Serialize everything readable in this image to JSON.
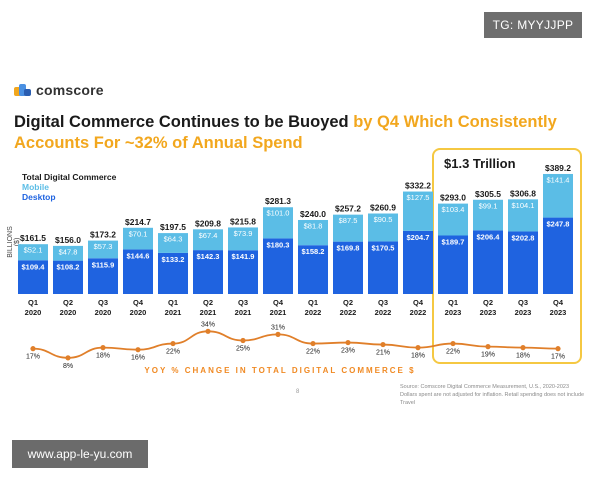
{
  "watermarks": {
    "top": "TG: MYYJJPP",
    "bottom": "www.app-le-yu.com"
  },
  "brand": {
    "name": "comscore"
  },
  "title": {
    "part1": "Digital Commerce Continues to be Buoyed ",
    "part2": "by Q4 Which Consistently Accounts For ~32% of Annual Spend"
  },
  "highlight": {
    "label": "$1.3 Trillion"
  },
  "source": {
    "line1": "Source: Comscore Digital Commerce Measurement, U.S., 2020-2023",
    "line2": "Dollars spent are not adjusted for inflation. Retail spending does not include Travel"
  },
  "page_number": "8",
  "colors": {
    "mobile": "#5bbde6",
    "desktop": "#1f63e0",
    "yoy_line": "#e07f2a",
    "accent": "#f2a71e",
    "box": "#f5c842"
  },
  "chart_data": {
    "type": "bar",
    "ylabel": "BILLIONS ($)",
    "legend": {
      "total": "Total Digital Commerce",
      "mobile": "Mobile",
      "desktop": "Desktop"
    },
    "categories": [
      [
        "Q1",
        "2020"
      ],
      [
        "Q2",
        "2020"
      ],
      [
        "Q3",
        "2020"
      ],
      [
        "Q4",
        "2020"
      ],
      [
        "Q1",
        "2021"
      ],
      [
        "Q2",
        "2021"
      ],
      [
        "Q3",
        "2021"
      ],
      [
        "Q4",
        "2021"
      ],
      [
        "Q1",
        "2022"
      ],
      [
        "Q2",
        "2022"
      ],
      [
        "Q3",
        "2022"
      ],
      [
        "Q4",
        "2022"
      ],
      [
        "Q1",
        "2023"
      ],
      [
        "Q2",
        "2023"
      ],
      [
        "Q3",
        "2023"
      ],
      [
        "Q4",
        "2023"
      ]
    ],
    "total": [
      "$161.5",
      "$156.0",
      "$173.2",
      "$214.7",
      "$197.5",
      "$209.8",
      "$215.8",
      "$281.3",
      "$240.0",
      "$257.2",
      "$260.9",
      "$332.2",
      "$293.0",
      "$305.5",
      "$306.8",
      "$389.2"
    ],
    "series": [
      {
        "name": "Desktop",
        "values": [
          109.4,
          108.2,
          115.9,
          144.6,
          133.2,
          142.3,
          141.9,
          180.3,
          158.2,
          169.8,
          170.5,
          204.7,
          189.7,
          206.4,
          202.8,
          247.8
        ]
      },
      {
        "name": "Mobile",
        "values": [
          52.1,
          47.8,
          57.3,
          70.1,
          64.3,
          67.4,
          73.9,
          101.0,
          81.8,
          87.5,
          90.5,
          127.5,
          103.4,
          99.1,
          104.1,
          141.4
        ]
      }
    ],
    "yoy": {
      "title": "YOY % CHANGE IN TOTAL DIGITAL COMMERCE $",
      "values": [
        17,
        8,
        18,
        16,
        22,
        34,
        25,
        31,
        22,
        23,
        21,
        18,
        22,
        19,
        18,
        17
      ],
      "labels": [
        "17%",
        "8%",
        "18%",
        "16%",
        "22%",
        "34%",
        "25%",
        "31%",
        "22%",
        "23%",
        "21%",
        "18%",
        "22%",
        "19%",
        "18%",
        "17%"
      ]
    }
  }
}
